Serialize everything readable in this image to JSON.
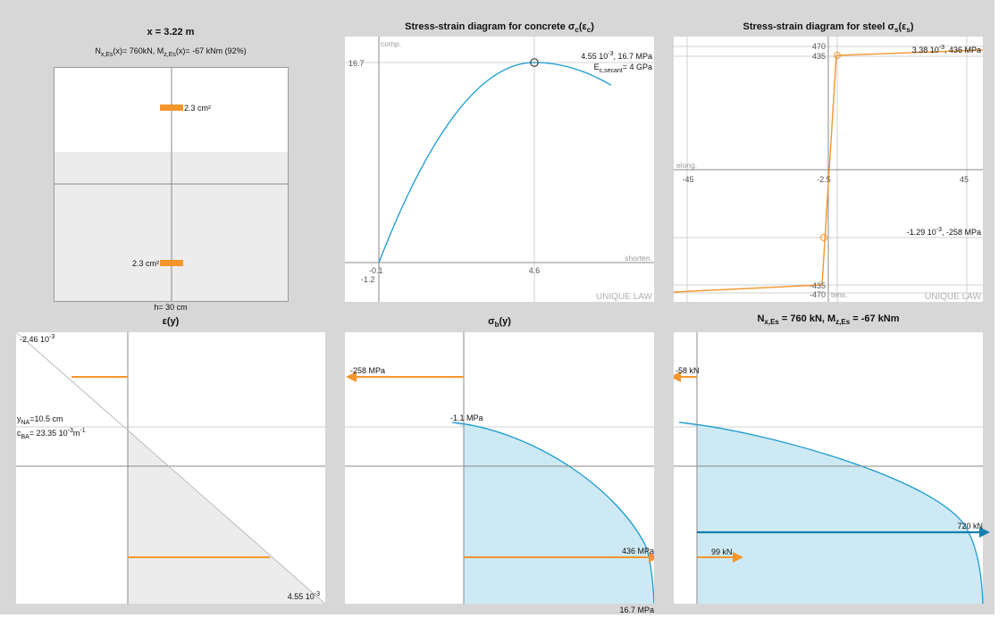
{
  "section": {
    "title": "x = 3.22 m",
    "forces_prefix": "N",
    "forces_sub1": "x,Es",
    "forces_mid1": "(x)= 760kN, M",
    "forces_sub2": "z,Es",
    "forces_mid2": "(x)= -67 kNm (92%)",
    "top_bar_label": "2.3 cm²",
    "bottom_bar_label": "2.3 cm²",
    "height_label": "h= 30 cm"
  },
  "concrete": {
    "title": "Stress-strain diagram for concrete σ",
    "title_sub": "c",
    "title_end": "(ε",
    "title_sub2": "c",
    "title_close": ")",
    "corner_top": "comp.",
    "corner_right": "shorten.",
    "law": "UNIQUE LAW",
    "y_tick_peak": "16.7",
    "y_tick_low": "-1.2",
    "x_tick_low": "-0.1",
    "x_tick_peak": "4.6",
    "peak_label_a": "4.55 10",
    "peak_label_exp": "-3",
    "peak_label_b": ", 16.7 MPa",
    "secant_prefix": "E",
    "secant_sub": "c,secant",
    "secant_value": "= 4 GPa",
    "curve": {
      "eps_max": 4.55,
      "sigma_max": 16.7,
      "eps_end": 6.8,
      "sigma_end": 14.8
    }
  },
  "steel": {
    "title": "Stress-strain diagram for steel σ",
    "title_sub": "s",
    "title_end": "(ε",
    "title_sub2": "s",
    "title_close": ")",
    "corner_left": "elong.",
    "corner_bottom": "tens.",
    "law": "UNIQUE LAW",
    "y_ticks": [
      "470",
      "435",
      "-435",
      "-470"
    ],
    "x_ticks": [
      "-45",
      "-2.5",
      "45"
    ],
    "upper_point_a": "3.38 10",
    "upper_point_exp": "-3",
    "upper_point_b": ", 436 MPa",
    "lower_point_a": "-1.29 10",
    "lower_point_exp": "-3",
    "lower_point_b": ", -258 MPa"
  },
  "strain": {
    "title": "ε(y)",
    "top_value_a": "-2.46 10",
    "top_value_exp": "-3",
    "bottom_value_a": "4.55 10",
    "bottom_value_exp": "-3",
    "yna_prefix": "y",
    "yna_sub": "NA",
    "yna_value": "=10.5 cm",
    "cba_prefix": "c",
    "cba_sub": "BA",
    "cba_value": "= 23.35 10",
    "cba_exp": "-3",
    "cba_unit": "m",
    "cba_unit_exp": "-1"
  },
  "stress": {
    "title": "σ",
    "title_sub": "b",
    "title_end": "(y)",
    "top_steel_label": "-258 MPa",
    "concrete_top_label": "-1.1 MPa",
    "bottom_steel_label": "436 MPa",
    "concrete_bottom_label": "16.7 MPa"
  },
  "forces": {
    "title_a": "N",
    "title_sub1": "x,Es",
    "title_b": " = 760 kN, M",
    "title_sub2": "z,Es",
    "title_c": " = -67 kNm",
    "top_force_label": "-58 kN",
    "resultant_label": "720 kN",
    "bottom_force_label": "99 kN"
  },
  "colors": {
    "gray_bg": "#d7d7d7",
    "steel_orange": "#f5962d",
    "concrete_blue": "#1a9bd1",
    "stress_fill": "#cde9f4",
    "resultant_blue": "#167fad",
    "axis_gray": "#8a8a8a",
    "compressed_fill": "#ececec"
  }
}
